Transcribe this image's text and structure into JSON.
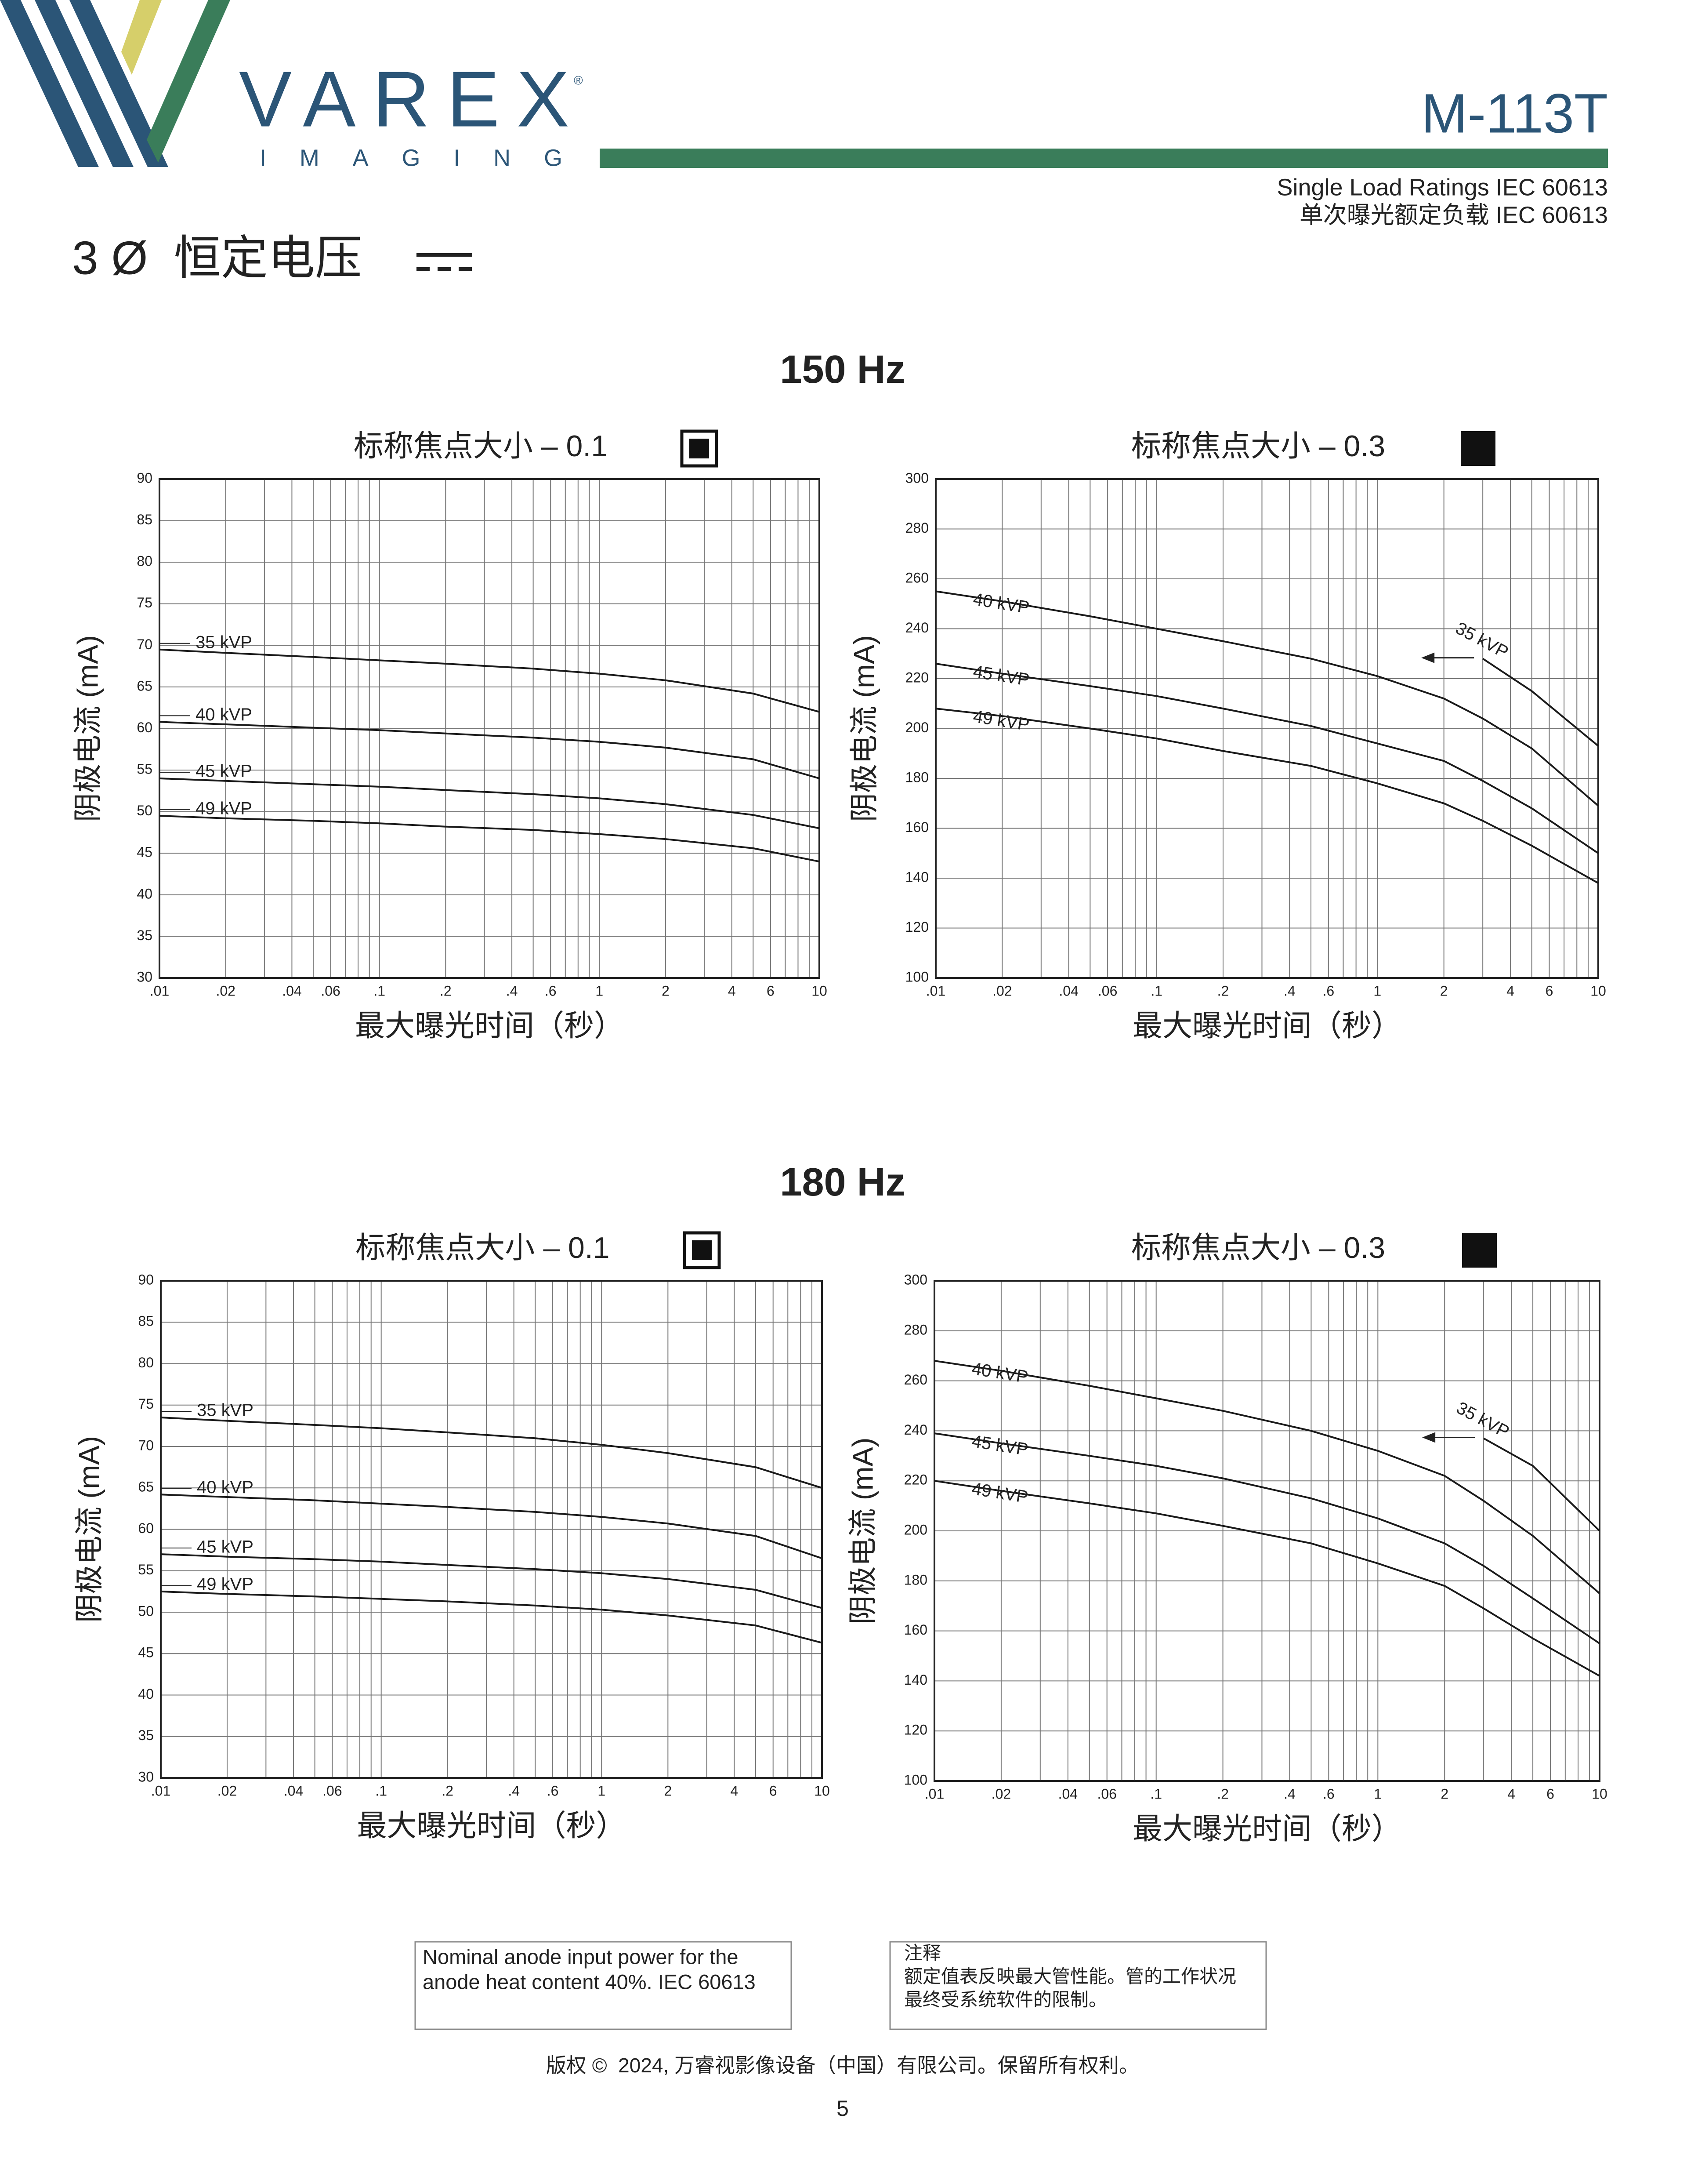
{
  "header": {
    "brand": "VAREX",
    "brand_mark": "®",
    "brand_sub": "IMAGING",
    "model": "M-113T",
    "subtitle_en": "Single Load Ratings IEC 60613",
    "subtitle_zh": "单次曝光额定负载 IEC 60613",
    "section": "3 Ø  恒定电压"
  },
  "groups": [
    "150 Hz",
    "180 Hz"
  ],
  "chart_data": [
    {
      "type": "line",
      "title": "标称焦点大小 – 0.1",
      "focal_icon": "framed",
      "x_label": "最大曝光时间（秒）",
      "y_label": "阴极电流 (mA)",
      "xscale": "log",
      "grid": true,
      "xlim": [
        0.01,
        10
      ],
      "xticks": [
        {
          "value": 0.01,
          "label": ".01"
        },
        {
          "value": 0.02,
          "label": ".02"
        },
        {
          "value": 0.04,
          "label": ".04"
        },
        {
          "value": 0.06,
          "label": ".06"
        },
        {
          "value": 0.1,
          "label": ".1"
        },
        {
          "value": 0.2,
          "label": ".2"
        },
        {
          "value": 0.4,
          "label": ".4"
        },
        {
          "value": 0.6,
          "label": ".6"
        },
        1,
        2,
        4,
        6,
        10
      ],
      "xminor": [
        0.03,
        0.05,
        0.07,
        0.08,
        0.09,
        0.3,
        0.5,
        0.7,
        0.8,
        0.9,
        3,
        5,
        7,
        8,
        9
      ],
      "ylim": [
        30,
        90
      ],
      "yticks": [
        30,
        35,
        40,
        45,
        50,
        55,
        60,
        65,
        70,
        75,
        80,
        85,
        90
      ],
      "x": [
        0.01,
        0.02,
        0.05,
        0.1,
        0.2,
        0.5,
        1,
        2,
        5,
        10
      ],
      "series": [
        {
          "name": "35 kVP",
          "color": "#1a1a1a",
          "values": [
            69.5,
            69.1,
            68.6,
            68.2,
            67.8,
            67.2,
            66.6,
            65.8,
            64.2,
            62
          ]
        },
        {
          "name": "40 kVP",
          "color": "#1a1a1a",
          "values": [
            60.8,
            60.5,
            60.1,
            59.8,
            59.4,
            58.9,
            58.4,
            57.7,
            56.3,
            54
          ]
        },
        {
          "name": "45 kVP",
          "color": "#1a1a1a",
          "values": [
            54,
            53.7,
            53.3,
            53,
            52.6,
            52.1,
            51.6,
            50.9,
            49.6,
            48
          ]
        },
        {
          "name": "49 kVP",
          "color": "#1a1a1a",
          "values": [
            49.5,
            49.2,
            48.9,
            48.6,
            48.2,
            47.8,
            47.3,
            46.7,
            45.6,
            44
          ]
        }
      ]
    },
    {
      "type": "line",
      "title": "标称焦点大小 – 0.3",
      "focal_icon": "solid",
      "x_label": "最大曝光时间（秒）",
      "y_label": "阴极电流 (mA)",
      "xscale": "log",
      "grid": true,
      "xlim": [
        0.01,
        10
      ],
      "xticks": [
        {
          "value": 0.01,
          "label": ".01"
        },
        {
          "value": 0.02,
          "label": ".02"
        },
        {
          "value": 0.04,
          "label": ".04"
        },
        {
          "value": 0.06,
          "label": ".06"
        },
        {
          "value": 0.1,
          "label": ".1"
        },
        {
          "value": 0.2,
          "label": ".2"
        },
        {
          "value": 0.4,
          "label": ".4"
        },
        {
          "value": 0.6,
          "label": ".6"
        },
        1,
        2,
        4,
        6,
        10
      ],
      "xminor": [
        0.03,
        0.05,
        0.07,
        0.08,
        0.09,
        0.3,
        0.5,
        0.7,
        0.8,
        0.9,
        3,
        5,
        7,
        8,
        9
      ],
      "ylim": [
        100,
        300
      ],
      "yticks": [
        100,
        120,
        140,
        160,
        180,
        200,
        220,
        240,
        260,
        280,
        300
      ],
      "x": [
        0.01,
        0.02,
        0.05,
        0.1,
        0.2,
        0.5,
        1,
        2,
        3,
        5,
        10
      ],
      "series": [
        {
          "name": "35 kVP",
          "color": "#1a1a1a",
          "values": [
            null,
            null,
            null,
            null,
            null,
            null,
            null,
            null,
            228,
            215,
            193
          ]
        },
        {
          "name": "40 kVP",
          "color": "#1a1a1a",
          "values": [
            255,
            251,
            245,
            240,
            235,
            228,
            221,
            212,
            204,
            192,
            169
          ]
        },
        {
          "name": "45 kVP",
          "color": "#1a1a1a",
          "values": [
            226,
            222,
            217,
            213,
            208,
            201,
            194,
            187,
            179,
            168,
            150
          ]
        },
        {
          "name": "49 kVP",
          "color": "#1a1a1a",
          "values": [
            208,
            205,
            200,
            196,
            191,
            185,
            178,
            170,
            163,
            153,
            138
          ]
        }
      ]
    },
    {
      "type": "line",
      "title": "标称焦点大小 – 0.1",
      "focal_icon": "framed",
      "x_label": "最大曝光时间（秒）",
      "y_label": "阴极电流 (mA)",
      "xscale": "log",
      "grid": true,
      "xlim": [
        0.01,
        10
      ],
      "xticks": [
        {
          "value": 0.01,
          "label": ".01"
        },
        {
          "value": 0.02,
          "label": ".02"
        },
        {
          "value": 0.04,
          "label": ".04"
        },
        {
          "value": 0.06,
          "label": ".06"
        },
        {
          "value": 0.1,
          "label": ".1"
        },
        {
          "value": 0.2,
          "label": ".2"
        },
        {
          "value": 0.4,
          "label": ".4"
        },
        {
          "value": 0.6,
          "label": ".6"
        },
        1,
        2,
        4,
        6,
        10
      ],
      "xminor": [
        0.03,
        0.05,
        0.07,
        0.08,
        0.09,
        0.3,
        0.5,
        0.7,
        0.8,
        0.9,
        3,
        5,
        7,
        8,
        9
      ],
      "ylim": [
        30,
        90
      ],
      "yticks": [
        30,
        35,
        40,
        45,
        50,
        55,
        60,
        65,
        70,
        75,
        80,
        85,
        90
      ],
      "x": [
        0.01,
        0.02,
        0.05,
        0.1,
        0.2,
        0.5,
        1,
        2,
        5,
        10
      ],
      "series": [
        {
          "name": "35 kVP",
          "color": "#1a1a1a",
          "values": [
            73.5,
            73.1,
            72.6,
            72.2,
            71.7,
            71,
            70.2,
            69.2,
            67.5,
            65
          ]
        },
        {
          "name": "40 kVP",
          "color": "#1a1a1a",
          "values": [
            64.2,
            63.9,
            63.5,
            63.1,
            62.7,
            62.1,
            61.5,
            60.7,
            59.2,
            56.5
          ]
        },
        {
          "name": "45 kVP",
          "color": "#1a1a1a",
          "values": [
            57,
            56.7,
            56.4,
            56.1,
            55.7,
            55.2,
            54.7,
            54,
            52.7,
            50.5
          ]
        },
        {
          "name": "49 kVP",
          "color": "#1a1a1a",
          "values": [
            52.5,
            52.2,
            51.9,
            51.6,
            51.3,
            50.8,
            50.3,
            49.6,
            48.4,
            46.3
          ]
        }
      ]
    },
    {
      "type": "line",
      "title": "标称焦点大小 – 0.3",
      "focal_icon": "solid",
      "x_label": "最大曝光时间（秒）",
      "y_label": "阴极电流 (mA)",
      "xscale": "log",
      "grid": true,
      "xlim": [
        0.01,
        10
      ],
      "xticks": [
        {
          "value": 0.01,
          "label": ".01"
        },
        {
          "value": 0.02,
          "label": ".02"
        },
        {
          "value": 0.04,
          "label": ".04"
        },
        {
          "value": 0.06,
          "label": ".06"
        },
        {
          "value": 0.1,
          "label": ".1"
        },
        {
          "value": 0.2,
          "label": ".2"
        },
        {
          "value": 0.4,
          "label": ".4"
        },
        {
          "value": 0.6,
          "label": ".6"
        },
        1,
        2,
        4,
        6,
        10
      ],
      "xminor": [
        0.03,
        0.05,
        0.07,
        0.08,
        0.09,
        0.3,
        0.5,
        0.7,
        0.8,
        0.9,
        3,
        5,
        7,
        8,
        9
      ],
      "ylim": [
        100,
        300
      ],
      "yticks": [
        100,
        120,
        140,
        160,
        180,
        200,
        220,
        240,
        260,
        280,
        300
      ],
      "x": [
        0.01,
        0.02,
        0.05,
        0.1,
        0.2,
        0.5,
        1,
        2,
        3,
        5,
        10
      ],
      "series": [
        {
          "name": "35 kVP",
          "color": "#1a1a1a",
          "values": [
            null,
            null,
            null,
            null,
            null,
            null,
            null,
            null,
            237,
            226,
            200
          ]
        },
        {
          "name": "40 kVP",
          "color": "#1a1a1a",
          "values": [
            268,
            264,
            258,
            253,
            248,
            240,
            232,
            222,
            212,
            198,
            175
          ]
        },
        {
          "name": "45 kVP",
          "color": "#1a1a1a",
          "values": [
            239,
            235,
            230,
            226,
            221,
            213,
            205,
            195,
            186,
            173,
            155
          ]
        },
        {
          "name": "49 kVP",
          "color": "#1a1a1a",
          "values": [
            220,
            216,
            211,
            207,
            202,
            195,
            187,
            178,
            169,
            157,
            142
          ]
        }
      ]
    }
  ],
  "notes": {
    "box1": [
      "Nominal anode input power for the",
      "anode heat content 40%. IEC 60613"
    ],
    "box2": [
      "注释",
      "额定值表反映最大管性能。管的工作状况",
      "最终受系统软件的限制。"
    ]
  },
  "footer": {
    "copyright": "版权 ©  2024, 万睿视影像设备（中国）有限公司。保留所有权利。",
    "page": 5
  }
}
